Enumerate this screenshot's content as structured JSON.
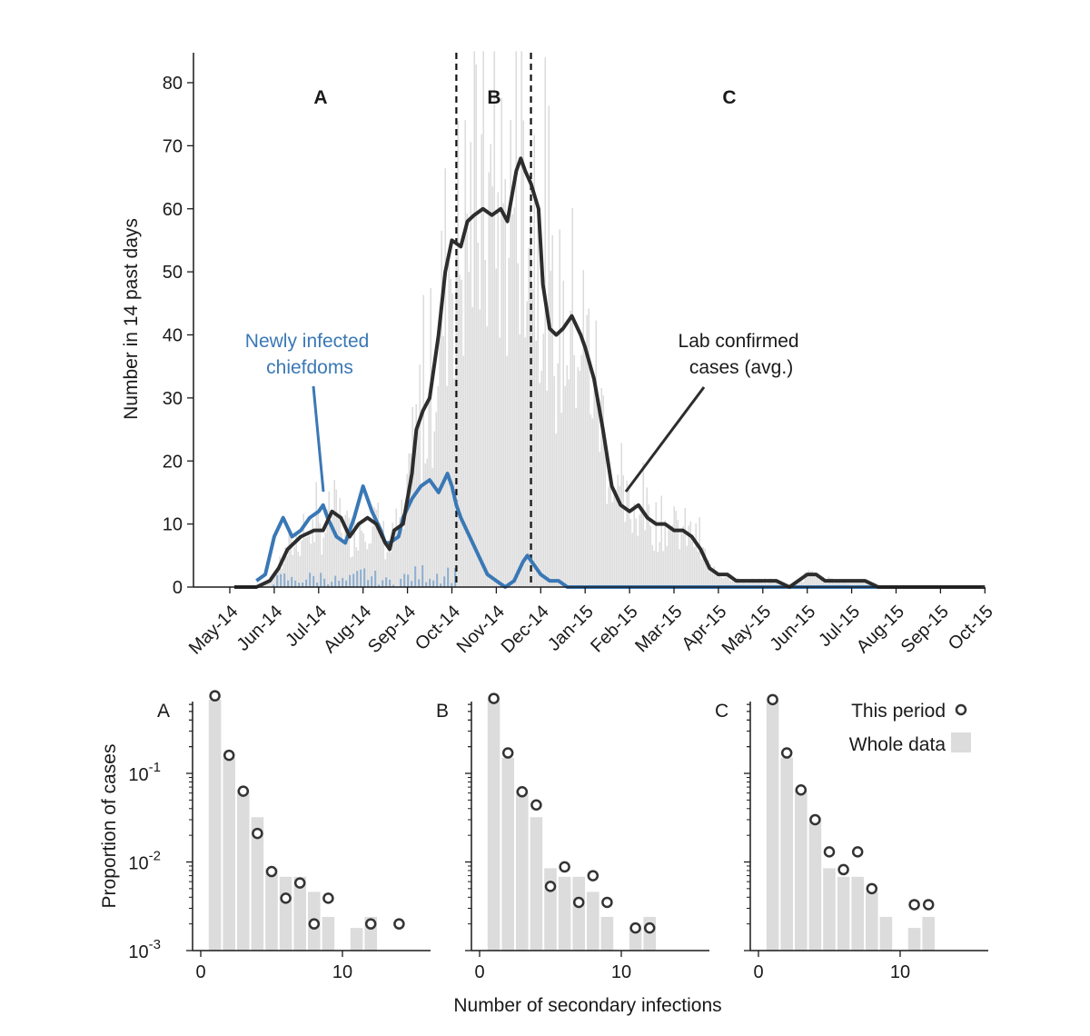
{
  "chart_data": [
    {
      "type": "line",
      "title": "",
      "xlabel": "",
      "ylabel": "Number in 14 past days",
      "ylim": [
        0,
        85
      ],
      "yticks": [
        0,
        10,
        20,
        30,
        40,
        50,
        60,
        70,
        80
      ],
      "x_month_index_range": [
        -0.3,
        17.8
      ],
      "month_labels": [
        "May-14",
        "Jun-14",
        "Jul-14",
        "Aug-14",
        "Sep-14",
        "Oct-14",
        "Nov-14",
        "Dec-14",
        "Jan-15",
        "Feb-15",
        "Mar-15",
        "Apr-15",
        "May-15",
        "Jun-15",
        "Jul-15",
        "Aug-15",
        "Sep-15",
        "Oct-15"
      ],
      "period_dividers_month_index": [
        5.1,
        6.78
      ],
      "periods": [
        "A",
        "B",
        "C"
      ],
      "series": [
        {
          "name": "Lab confirmed cases (avg.)",
          "color": "#2d2d2d",
          "x": [
            0.1,
            0.6,
            0.9,
            1.1,
            1.3,
            1.6,
            1.9,
            2.1,
            2.3,
            2.5,
            2.7,
            2.9,
            3.1,
            3.3,
            3.5,
            3.6,
            3.7,
            3.9,
            4.1,
            4.2,
            4.35,
            4.5,
            4.7,
            4.85,
            5.0,
            5.2,
            5.35,
            5.5,
            5.7,
            5.9,
            6.1,
            6.25,
            6.35,
            6.45,
            6.55,
            6.65,
            6.78,
            6.95,
            7.05,
            7.2,
            7.35,
            7.5,
            7.7,
            7.9,
            8.0,
            8.2,
            8.4,
            8.6,
            8.8,
            9.0,
            9.2,
            9.4,
            9.6,
            9.8,
            10.0,
            10.2,
            10.4,
            10.6,
            10.8,
            11.0,
            11.2,
            11.4,
            11.6,
            11.8,
            12.0,
            12.3,
            12.6,
            13.0,
            13.2,
            13.4,
            13.6,
            14.0,
            14.3,
            14.6,
            15.0,
            15.5,
            16.0,
            16.5,
            17.0
          ],
          "values": [
            0,
            0,
            1,
            3,
            6,
            8,
            9,
            9,
            12,
            11,
            8,
            10,
            11,
            10,
            7,
            6,
            9,
            10,
            18,
            25,
            28,
            30,
            40,
            50,
            55,
            54,
            58,
            59,
            60,
            59,
            60,
            58,
            62,
            66,
            68,
            66,
            64,
            60,
            48,
            41,
            40,
            41,
            43,
            40,
            38,
            33,
            25,
            16,
            13,
            12,
            13,
            11,
            10,
            10,
            9,
            9,
            8,
            6,
            3,
            2,
            2,
            1,
            1,
            1,
            1,
            1,
            0,
            2,
            2,
            1,
            1,
            1,
            1,
            0,
            0,
            0,
            0,
            0,
            0
          ]
        },
        {
          "name": "Newly infected chiefdoms",
          "color": "#3a78b5",
          "x": [
            0.6,
            0.8,
            1.0,
            1.2,
            1.4,
            1.6,
            1.8,
            2.0,
            2.1,
            2.2,
            2.4,
            2.6,
            2.8,
            3.0,
            3.2,
            3.4,
            3.5,
            3.6,
            3.8,
            3.9,
            4.1,
            4.3,
            4.5,
            4.7,
            4.9,
            5.0,
            5.1,
            5.2,
            5.4,
            5.6,
            5.8,
            6.0,
            6.2,
            6.4,
            6.6,
            6.7,
            6.8,
            7.0,
            7.2,
            7.4,
            7.6,
            7.8,
            8.0,
            8.2,
            8.4,
            8.6,
            8.8,
            9.0,
            9.4,
            10.0,
            11.0,
            12.0,
            13.0,
            14.0,
            15.0,
            16.0,
            16.5
          ],
          "values": [
            1,
            2,
            8,
            11,
            8,
            9,
            11,
            12,
            13,
            11,
            8,
            7,
            11,
            16,
            12,
            9,
            7,
            7,
            8,
            11,
            14,
            16,
            17,
            15,
            18,
            16,
            13,
            11,
            8,
            5,
            2,
            1,
            0,
            1,
            4,
            5,
            4,
            2,
            1,
            1,
            0,
            0,
            0,
            0,
            0,
            0,
            0,
            0,
            0,
            0,
            0,
            0,
            0,
            0,
            0,
            0,
            0
          ]
        }
      ],
      "annotations": [
        "Newly infected chiefdoms",
        "Lab confirmed cases (avg.)"
      ]
    },
    {
      "type": "bar",
      "panel": "A",
      "xlabel": "",
      "ylabel": "Proportion of cases",
      "yscale": "log",
      "ylim": [
        0.001,
        1
      ],
      "xlim": [
        -1,
        15
      ],
      "xticks": [
        0,
        10
      ],
      "yticks": [
        0.001,
        0.01,
        0.1
      ],
      "series": [
        {
          "name": "Whole data",
          "x": [
            1,
            2,
            3,
            4,
            5,
            6,
            7,
            8,
            9,
            11,
            12
          ],
          "values": [
            0.68,
            0.15,
            0.065,
            0.032,
            0.0085,
            0.0068,
            0.0068,
            0.0046,
            0.0024,
            0.0018,
            0.0024
          ]
        },
        {
          "name": "This period",
          "x": [
            1,
            2,
            3,
            4,
            5,
            6,
            7,
            8,
            9,
            12,
            14
          ],
          "values": [
            0.75,
            0.16,
            0.063,
            0.021,
            0.0078,
            0.0039,
            0.0058,
            0.002,
            0.0039,
            0.002,
            0.002
          ]
        }
      ]
    },
    {
      "type": "bar",
      "panel": "B",
      "xlabel": "Number of secondary infections",
      "ylabel": "",
      "yscale": "log",
      "ylim": [
        0.001,
        1
      ],
      "xlim": [
        -1,
        15
      ],
      "xticks": [
        0,
        10
      ],
      "series": [
        {
          "name": "Whole data",
          "x": [
            1,
            2,
            3,
            4,
            5,
            6,
            7,
            8,
            9,
            11,
            12
          ],
          "values": [
            0.68,
            0.15,
            0.065,
            0.032,
            0.0085,
            0.0068,
            0.0068,
            0.0046,
            0.0024,
            0.0018,
            0.0024
          ]
        },
        {
          "name": "This period",
          "x": [
            1,
            2,
            3,
            4,
            5,
            6,
            7,
            8,
            9,
            11,
            12
          ],
          "values": [
            0.7,
            0.17,
            0.062,
            0.044,
            0.0053,
            0.0088,
            0.0035,
            0.007,
            0.0035,
            0.0018,
            0.0018
          ]
        }
      ]
    },
    {
      "type": "bar",
      "panel": "C",
      "xlabel": "",
      "ylabel": "",
      "yscale": "log",
      "ylim": [
        0.001,
        1
      ],
      "xlim": [
        -1,
        15
      ],
      "xticks": [
        0,
        10
      ],
      "legend": {
        "position": "top-right",
        "entries": [
          "This period",
          "Whole data"
        ]
      },
      "series": [
        {
          "name": "Whole data",
          "x": [
            1,
            2,
            3,
            4,
            5,
            6,
            7,
            8,
            9,
            11,
            12
          ],
          "values": [
            0.68,
            0.15,
            0.065,
            0.032,
            0.0085,
            0.0068,
            0.0068,
            0.0046,
            0.0024,
            0.0018,
            0.0024
          ]
        },
        {
          "name": "This period",
          "x": [
            1,
            2,
            3,
            4,
            5,
            6,
            7,
            8,
            11,
            12
          ],
          "values": [
            0.68,
            0.17,
            0.065,
            0.03,
            0.013,
            0.0082,
            0.013,
            0.005,
            0.0033,
            0.0033
          ]
        }
      ]
    }
  ],
  "colors": {
    "cases": "#2d2d2d",
    "chiefdoms": "#3a78b5",
    "bars": "#dcdcdc",
    "daily_blue": "#8fb0d0"
  }
}
